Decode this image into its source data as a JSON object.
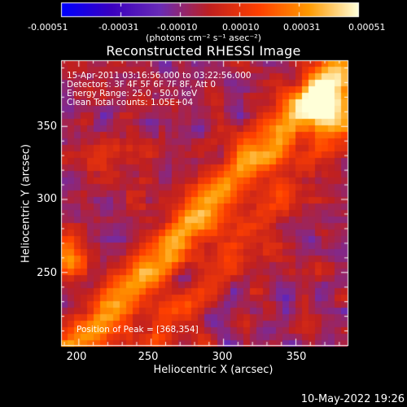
{
  "colorbar": {
    "tick_labels": [
      "-0.00051",
      "-0.00031",
      "-0.00010",
      "0.00010",
      "0.00031",
      "0.00051"
    ],
    "unit_label": "(photons cm⁻² s⁻¹ asec⁻²)",
    "colors": [
      "#0000ff",
      "#3a00c0",
      "#6a2cb6",
      "#c02020",
      "#ff4000",
      "#ff9a00",
      "#ffffd8"
    ]
  },
  "image": {
    "title": "Reconstructed RHESSI Image",
    "info_lines": [
      "15-Apr-2011 03:16:56.000 to 03:22:56.000",
      "Detectors: 3F 4F 5F 6F 7F 8F, Att 0",
      "Energy Range: 25.0 - 50.0 keV",
      "Clean     Total counts: 1.05E+04"
    ],
    "peak_text": "Position of Peak = [368,354]"
  },
  "axes": {
    "x_label": "Heliocentric X (arcsec)",
    "y_label": "Heliocentric Y (arcsec)",
    "x_ticks": [
      "200",
      "250",
      "300",
      "350"
    ],
    "y_ticks": [
      "250",
      "300",
      "350"
    ]
  },
  "timestamp": "10-May-2022 19:26"
}
